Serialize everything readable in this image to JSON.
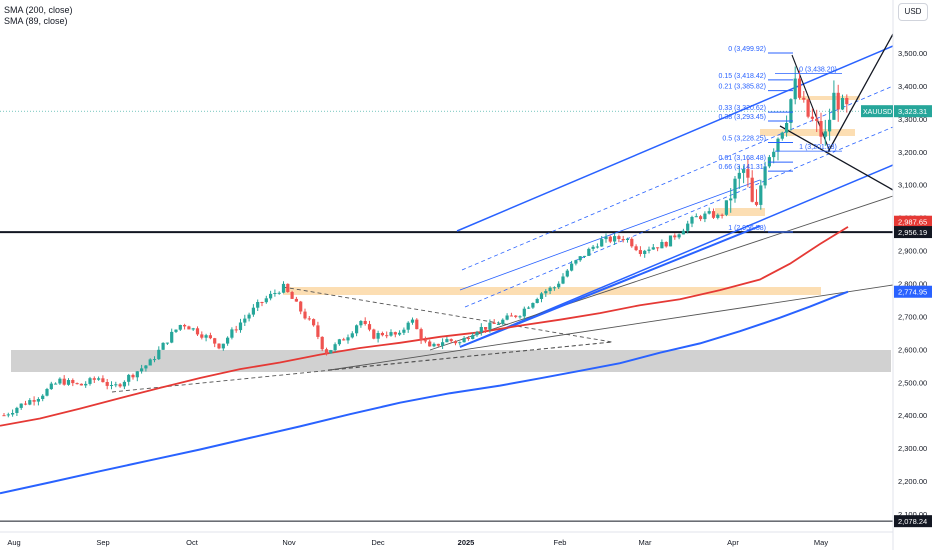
{
  "legend": {
    "sma_long": "SMA (200, close)",
    "sma_short": "SMA (89, close)"
  },
  "currency_button": "USD",
  "chart_data": {
    "type": "candlestick",
    "symbol": "XAUUSD",
    "x_labels": [
      "Aug",
      "Sep",
      "Oct",
      "Nov",
      "Dec",
      "2025",
      "Feb",
      "Mar",
      "Apr",
      "May"
    ],
    "y_ticks": [
      2100,
      2200,
      2300,
      2400,
      2500,
      2600,
      2700,
      2800,
      2900,
      3000,
      3100,
      3200,
      3300,
      3400,
      3500
    ],
    "y_tick_labels": [
      "2,100.00",
      "2,200.00",
      "2,300.00",
      "2,400.00",
      "2,500.00",
      "2,600.00",
      "2,700.00",
      "2,800.00",
      "2,900.00",
      "3,000.00",
      "3,100.00",
      "3,200.00",
      "3,300.00",
      "3,400.00",
      "3,500.00"
    ],
    "ylim": [
      2070,
      3560
    ],
    "grid": false,
    "price_tags": [
      {
        "label": "XAUUSD",
        "value": 3323.31,
        "text": "3,323.31",
        "color": "#26a69a"
      },
      {
        "label": "",
        "value": 2987.65,
        "text": "2,987.65",
        "color": "#e53935"
      },
      {
        "label": "",
        "value": 2956.19,
        "text": "2,956.19",
        "color": "#131722"
      },
      {
        "label": "",
        "value": 2774.95,
        "text": "2,774.95",
        "color": "#2962ff"
      },
      {
        "label": "",
        "value": 2078.24,
        "text": "2,078.24",
        "color": "#131722"
      }
    ],
    "fib_levels": [
      {
        "ratio": "0",
        "value": 3499.92,
        "text": "0 (3,499.92)"
      },
      {
        "ratio": "0.15",
        "value": 3418.42,
        "text": "0.15 (3,418.42)"
      },
      {
        "ratio": "0.21",
        "value": 3385.82,
        "text": "0.21 (3,385.82)"
      },
      {
        "ratio": "0.33",
        "value": 3320.62,
        "text": "0.33 (3,320.62)"
      },
      {
        "ratio": "0.38",
        "value": 3293.45,
        "text": "0.38 (3,293.45)"
      },
      {
        "ratio": "0.5",
        "value": 3228.25,
        "text": "0.5 (3,228.25)"
      },
      {
        "ratio": "0.61",
        "value": 3168.48,
        "text": "0.61 (3,168.48)"
      },
      {
        "ratio": "0.66",
        "value": 3141.31,
        "text": "0.66 (3,141.31)"
      },
      {
        "ratio": "1",
        "value": 2956.58,
        "text": "1 (2,956.58)"
      }
    ],
    "fib_secondary": [
      {
        "text": "0 (3,438.20)",
        "value": 3438.2
      },
      {
        "text": "1 (3,201.93)",
        "value": 3201.93
      }
    ],
    "sma_200_points": [
      [
        0,
        2163
      ],
      [
        50,
        2196
      ],
      [
        100,
        2230
      ],
      [
        150,
        2263
      ],
      [
        200,
        2296
      ],
      [
        250,
        2331
      ],
      [
        300,
        2366
      ],
      [
        350,
        2403
      ],
      [
        400,
        2438
      ],
      [
        450,
        2467
      ],
      [
        500,
        2490
      ],
      [
        540,
        2512
      ],
      [
        580,
        2535
      ],
      [
        620,
        2558
      ],
      [
        660,
        2590
      ],
      [
        700,
        2618
      ],
      [
        740,
        2655
      ],
      [
        780,
        2696
      ],
      [
        810,
        2730
      ],
      [
        835,
        2760
      ],
      [
        848,
        2775
      ]
    ],
    "sma_89_points": [
      [
        0,
        2368
      ],
      [
        40,
        2390
      ],
      [
        80,
        2420
      ],
      [
        120,
        2452
      ],
      [
        160,
        2483
      ],
      [
        200,
        2513
      ],
      [
        240,
        2540
      ],
      [
        280,
        2560
      ],
      [
        320,
        2584
      ],
      [
        360,
        2604
      ],
      [
        400,
        2620
      ],
      [
        440,
        2638
      ],
      [
        480,
        2652
      ],
      [
        520,
        2672
      ],
      [
        560,
        2690
      ],
      [
        600,
        2710
      ],
      [
        640,
        2734
      ],
      [
        680,
        2752
      ],
      [
        720,
        2780
      ],
      [
        760,
        2812
      ],
      [
        790,
        2860
      ],
      [
        820,
        2920
      ],
      [
        848,
        2972
      ]
    ]
  }
}
